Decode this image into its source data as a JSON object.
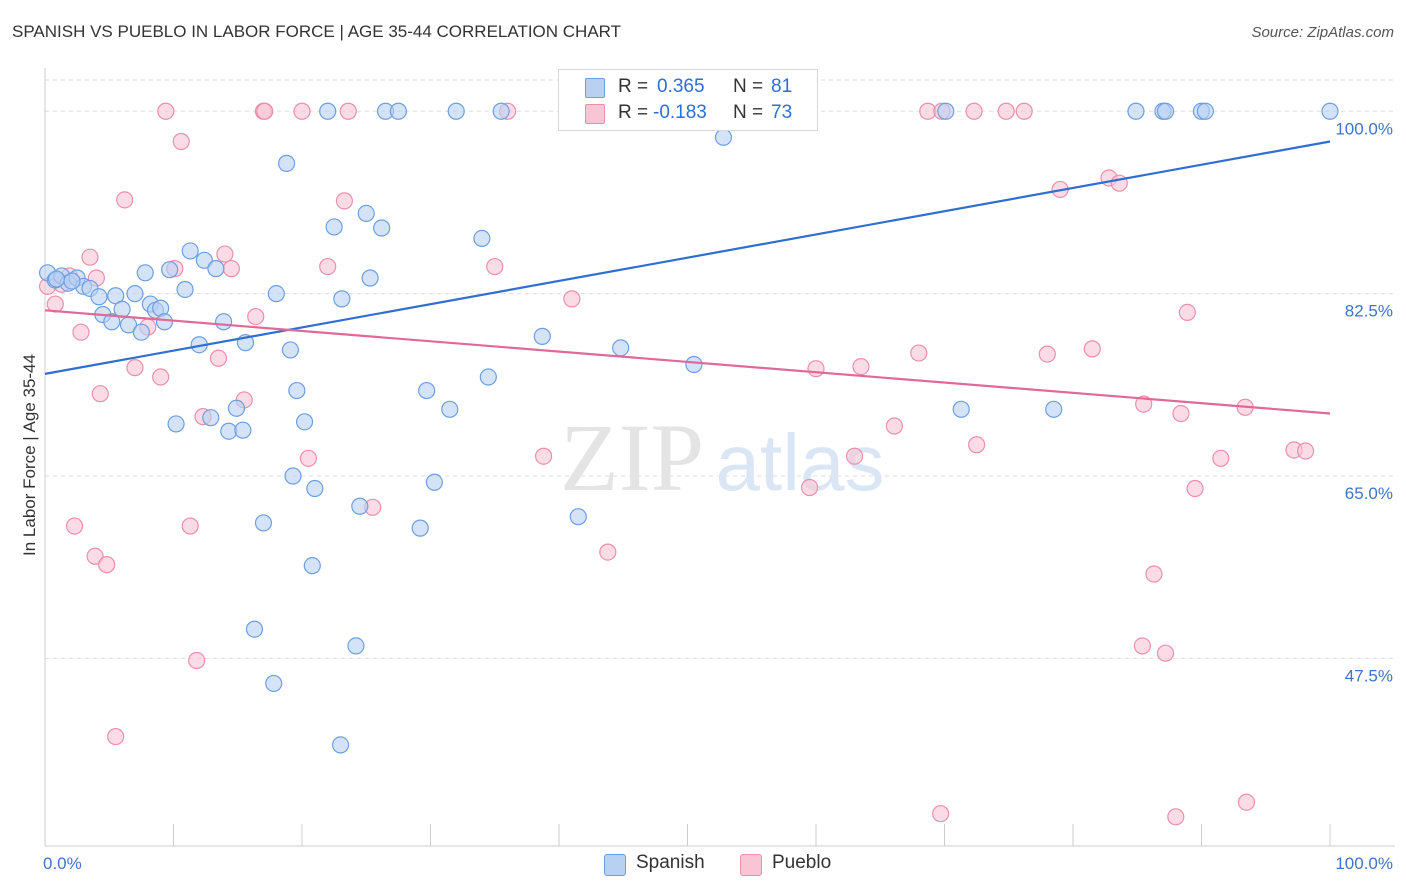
{
  "title": "SPANISH VS PUEBLO IN LABOR FORCE | AGE 35-44 CORRELATION CHART",
  "source": "Source: ZipAtlas.com",
  "watermark": {
    "zip": "ZIP",
    "atlas": "atlas"
  },
  "colors": {
    "spanish_fill": "#b8d1f3",
    "spanish_stroke": "#6d9fe0",
    "spanish_line": "#2f6ed2",
    "pueblo_fill": "#f9c5d5",
    "pueblo_stroke": "#ec8fab",
    "pueblo_line": "#e0699a",
    "tick_label": "#3d74cc"
  },
  "legend": {
    "rows": [
      {
        "r_label": "R =",
        "r_value": "0.365",
        "n_label": "N =",
        "n_value": "81"
      },
      {
        "r_label": "R =",
        "r_value": "-0.183",
        "n_label": "N =",
        "n_value": "73"
      }
    ],
    "bottom": [
      "Spanish",
      "Pueblo"
    ]
  },
  "chart_data": {
    "type": "scatter",
    "title": "SPANISH VS PUEBLO IN LABOR FORCE | AGE 35-44 CORRELATION CHART",
    "xlabel": "",
    "ylabel": "In Labor Force | Age 35-44",
    "xlim": [
      0,
      100
    ],
    "ylim": [
      29.5,
      103
    ],
    "x_tick_labels": [
      {
        "value": 0,
        "label": "0.0%"
      },
      {
        "value": 100,
        "label": "100.0%"
      }
    ],
    "y_tick_labels": [
      {
        "value": 100,
        "label": "100.0%"
      },
      {
        "value": 82.5,
        "label": "82.5%"
      },
      {
        "value": 65,
        "label": "65.0%"
      },
      {
        "value": 47.5,
        "label": "47.5%"
      }
    ],
    "grid": "horizontal dashed",
    "legend_position": "top-center",
    "series": [
      {
        "name": "Spanish",
        "r": 0.365,
        "n": 81,
        "trend": {
          "x": [
            0,
            100
          ],
          "y": [
            74.8,
            97.1
          ]
        },
        "points": [
          [
            0.2,
            84.5
          ],
          [
            0.8,
            83.8
          ],
          [
            1.3,
            84.2
          ],
          [
            1.8,
            83.5
          ],
          [
            2.5,
            84.0
          ],
          [
            3.0,
            83.2
          ],
          [
            3.5,
            83.0
          ],
          [
            4.2,
            82.2
          ],
          [
            4.5,
            80.5
          ],
          [
            5.5,
            82.3
          ],
          [
            6.0,
            81.0
          ],
          [
            6.5,
            79.5
          ],
          [
            7.0,
            82.5
          ],
          [
            7.5,
            78.8
          ],
          [
            7.8,
            84.5
          ],
          [
            8.2,
            81.5
          ],
          [
            8.6,
            80.9
          ],
          [
            9.0,
            81.1
          ],
          [
            9.3,
            79.8
          ],
          [
            9.7,
            84.8
          ],
          [
            10.2,
            70.0
          ],
          [
            10.9,
            82.9
          ],
          [
            11.3,
            86.6
          ],
          [
            12.0,
            77.6
          ],
          [
            12.4,
            85.7
          ],
          [
            12.9,
            70.6
          ],
          [
            13.3,
            84.9
          ],
          [
            13.9,
            79.8
          ],
          [
            14.3,
            69.3
          ],
          [
            14.9,
            71.5
          ],
          [
            15.4,
            69.4
          ],
          [
            15.6,
            77.8
          ],
          [
            16.3,
            50.3
          ],
          [
            17.0,
            60.5
          ],
          [
            17.8,
            45.1
          ],
          [
            18.0,
            82.5
          ],
          [
            18.8,
            95.0
          ],
          [
            19.1,
            77.1
          ],
          [
            19.3,
            65.0
          ],
          [
            19.6,
            73.2
          ],
          [
            20.2,
            70.2
          ],
          [
            20.8,
            56.4
          ],
          [
            21.0,
            63.8
          ],
          [
            22.0,
            100.0
          ],
          [
            22.5,
            88.9
          ],
          [
            23.0,
            39.2
          ],
          [
            23.1,
            82.0
          ],
          [
            24.2,
            48.7
          ],
          [
            24.5,
            62.1
          ],
          [
            25.0,
            90.2
          ],
          [
            25.3,
            84.0
          ],
          [
            26.2,
            88.8
          ],
          [
            26.5,
            100.0
          ],
          [
            27.5,
            100.0
          ],
          [
            29.2,
            60.0
          ],
          [
            29.7,
            73.2
          ],
          [
            30.3,
            64.4
          ],
          [
            31.5,
            71.4
          ],
          [
            32.0,
            100.0
          ],
          [
            34.0,
            87.8
          ],
          [
            34.5,
            74.5
          ],
          [
            35.5,
            100.0
          ],
          [
            38.7,
            78.4
          ],
          [
            41.5,
            61.1
          ],
          [
            44.8,
            77.3
          ],
          [
            47.8,
            100.0
          ],
          [
            50.5,
            75.7
          ],
          [
            52.8,
            97.5
          ],
          [
            56.3,
            100.0
          ],
          [
            70.1,
            100.0
          ],
          [
            71.3,
            71.4
          ],
          [
            78.5,
            71.4
          ],
          [
            84.9,
            100.0
          ],
          [
            87.0,
            100.0
          ],
          [
            87.2,
            100.0
          ],
          [
            90.0,
            100.0
          ],
          [
            90.3,
            100.0
          ],
          [
            100.0,
            100.0
          ],
          [
            0.9,
            83.9
          ],
          [
            2.1,
            83.7
          ],
          [
            5.2,
            79.8
          ]
        ]
      },
      {
        "name": "Pueblo",
        "r": -0.183,
        "n": 73,
        "trend": {
          "x": [
            0,
            100
          ],
          "y": [
            80.9,
            71.0
          ]
        },
        "points": [
          [
            0.2,
            83.2
          ],
          [
            0.8,
            81.5
          ],
          [
            1.3,
            83.4
          ],
          [
            1.9,
            84.2
          ],
          [
            2.3,
            60.2
          ],
          [
            2.8,
            78.8
          ],
          [
            3.5,
            86.0
          ],
          [
            3.9,
            57.3
          ],
          [
            4.3,
            72.9
          ],
          [
            4.8,
            56.5
          ],
          [
            5.5,
            40.0
          ],
          [
            6.2,
            91.5
          ],
          [
            7.0,
            75.4
          ],
          [
            8.0,
            79.3
          ],
          [
            9.0,
            74.5
          ],
          [
            9.4,
            100.0
          ],
          [
            10.1,
            84.9
          ],
          [
            10.6,
            97.1
          ],
          [
            11.3,
            60.2
          ],
          [
            11.8,
            47.3
          ],
          [
            12.3,
            70.7
          ],
          [
            13.5,
            76.3
          ],
          [
            14.0,
            86.3
          ],
          [
            14.5,
            84.9
          ],
          [
            15.5,
            72.3
          ],
          [
            16.4,
            80.3
          ],
          [
            17.0,
            100.0
          ],
          [
            17.1,
            100.0
          ],
          [
            20.0,
            100.0
          ],
          [
            20.5,
            66.7
          ],
          [
            22.0,
            85.1
          ],
          [
            23.3,
            91.4
          ],
          [
            23.6,
            100.0
          ],
          [
            25.5,
            62.0
          ],
          [
            35.0,
            85.1
          ],
          [
            36.0,
            100.0
          ],
          [
            38.8,
            66.9
          ],
          [
            41.0,
            82.0
          ],
          [
            43.8,
            57.7
          ],
          [
            50.0,
            100.0
          ],
          [
            51.5,
            100.0
          ],
          [
            59.5,
            63.9
          ],
          [
            60.0,
            75.3
          ],
          [
            63.0,
            66.9
          ],
          [
            63.5,
            75.5
          ],
          [
            66.1,
            69.8
          ],
          [
            68.0,
            76.8
          ],
          [
            68.7,
            100.0
          ],
          [
            69.7,
            32.6
          ],
          [
            69.8,
            100.0
          ],
          [
            72.3,
            100.0
          ],
          [
            72.5,
            68.0
          ],
          [
            74.8,
            100.0
          ],
          [
            76.2,
            100.0
          ],
          [
            78.0,
            76.7
          ],
          [
            79.0,
            92.5
          ],
          [
            81.5,
            77.2
          ],
          [
            82.8,
            93.6
          ],
          [
            83.6,
            93.1
          ],
          [
            85.4,
            48.7
          ],
          [
            85.5,
            71.9
          ],
          [
            86.3,
            55.6
          ],
          [
            87.2,
            48.0
          ],
          [
            88.0,
            32.3
          ],
          [
            88.4,
            71.0
          ],
          [
            88.9,
            80.7
          ],
          [
            89.5,
            63.8
          ],
          [
            91.5,
            66.7
          ],
          [
            93.5,
            33.7
          ],
          [
            93.4,
            71.6
          ],
          [
            97.2,
            67.5
          ],
          [
            98.1,
            67.4
          ],
          [
            4.0,
            84.0
          ]
        ]
      }
    ]
  }
}
